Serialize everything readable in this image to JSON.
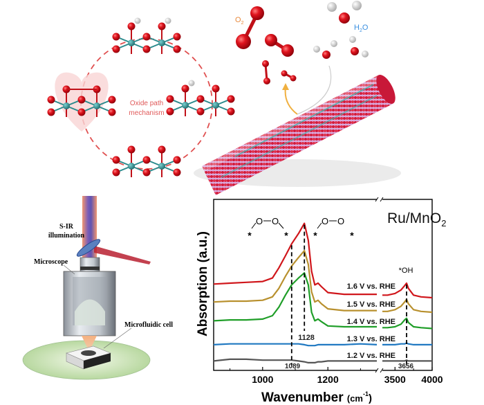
{
  "top_panel": {
    "mechanism_label_line1": "Oxide path",
    "mechanism_label_line2": "mechanism",
    "o2_label": "O",
    "o2_sub": "2",
    "h2o_label_h": "H",
    "h2o_sub": "2",
    "h2o_label_o": "O",
    "colors": {
      "oxygen": "#e0141e",
      "ruthenium": "#2a8a8c",
      "hydrogen": "#e8e8e8",
      "dashed_path": "#e05050",
      "label": "#e05a5a",
      "o2_label": "#e8883a",
      "h2o_label": "#3a8fe0",
      "arrow": "#f0b040"
    }
  },
  "setup_panel": {
    "illumination_label_line1": "S-IR",
    "illumination_label_line2": "illumination",
    "microscope_label": "Microscope",
    "cell_label": "Microfluidic cell"
  },
  "chart_data": {
    "type": "line",
    "title": "Ru/MnO2",
    "title_main": "Ru/MnO",
    "title_sub": "2",
    "xlabel": "Wavenumber",
    "xlabel_unit": "(cm",
    "xlabel_exp": "-1",
    "xlabel_close": ")",
    "ylabel": "Absorption (a.u.)",
    "x_axis": "broken",
    "x_segments": [
      [
        850,
        1350
      ],
      [
        3330,
        4000
      ]
    ],
    "xticks": [
      1000,
      1200,
      3500,
      4000
    ],
    "ylim": [
      0,
      100
    ],
    "grid": false,
    "annotations": {
      "peak_1089": "1089",
      "peak_1128": "1128",
      "peak_3656": "3656",
      "oh_label": "*OH",
      "star": "*",
      "oxygen": "O",
      "dashed_positions": [
        1089,
        1128,
        3656
      ]
    },
    "x": [
      850,
      900,
      950,
      1000,
      1030,
      1050,
      1070,
      1089,
      1110,
      1128,
      1140,
      1150,
      1160,
      1170,
      1180,
      1200,
      1250,
      1300,
      1350,
      3330,
      3400,
      3500,
      3580,
      3630,
      3656,
      3680,
      3750,
      3850,
      4000
    ],
    "series": [
      {
        "name": "1.6 V vs. RHE",
        "color": "#d0161b",
        "values": [
          50.5,
          51,
          51.5,
          52,
          54,
          60,
          67,
          74,
          80,
          86,
          76,
          58,
          50,
          51,
          49,
          45.5,
          44.5,
          44.5,
          44.5,
          44,
          44,
          45,
          47,
          49.5,
          51,
          48,
          44,
          43,
          42.5
        ]
      },
      {
        "name": "1.5 V vs. RHE",
        "color": "#b8902e",
        "values": [
          40,
          40.5,
          40.5,
          41,
          43,
          48,
          55,
          61,
          66,
          70,
          62,
          46,
          40,
          41,
          39,
          36,
          35,
          35,
          35,
          34.5,
          34.5,
          35.5,
          37.5,
          40,
          41.5,
          39,
          35.5,
          34.5,
          34
        ]
      },
      {
        "name": "1.4 V vs. RHE",
        "color": "#1f9e28",
        "values": [
          29,
          29.5,
          29.5,
          30,
          32,
          37,
          44,
          50,
          54,
          57,
          50,
          34,
          29,
          30,
          28.5,
          26,
          25.5,
          25.5,
          25.5,
          25,
          25,
          25.5,
          27,
          29.5,
          30.5,
          28,
          25.5,
          25,
          24.5
        ]
      },
      {
        "name": "1.3 V vs. RHE",
        "color": "#1f78c1",
        "values": [
          15,
          15.5,
          15.5,
          15.5,
          15.5,
          15.5,
          15.5,
          15.5,
          15.5,
          15,
          14.5,
          14.5,
          14.5,
          15,
          15,
          15,
          15,
          15.5,
          15,
          15,
          15,
          15,
          15.5,
          15.5,
          16,
          15.5,
          15,
          15,
          15
        ]
      },
      {
        "name": "1.2 V vs. RHE",
        "color": "#555555",
        "values": [
          5.5,
          6.5,
          6.5,
          6,
          6,
          6,
          6,
          6,
          5.5,
          5,
          4.5,
          4.5,
          4.5,
          5,
          5,
          5.5,
          5.5,
          5.5,
          5.5,
          5.5,
          5.5,
          5.5,
          5.5,
          5.5,
          6,
          5.5,
          5.5,
          5.5,
          5.5
        ]
      }
    ]
  }
}
